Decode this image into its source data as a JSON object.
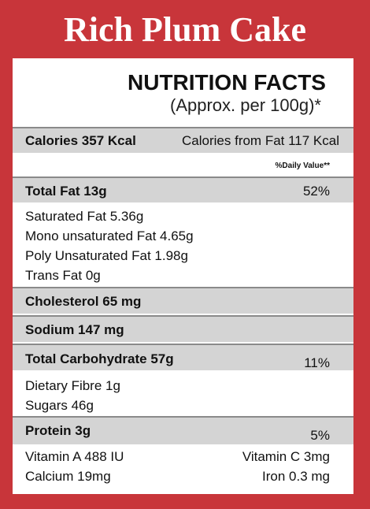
{
  "title": "Rich Plum Cake",
  "panel": {
    "heading": "NUTRITION FACTS",
    "subheading": "(Approx. per 100g)*"
  },
  "calories": {
    "label": "Calories 357 Kcal",
    "from_fat": "Calories from Fat 117 Kcal"
  },
  "daily_value_header": "%Daily Value**",
  "total_fat": {
    "label": "Total Fat 13g",
    "percent": "52%"
  },
  "fat_details": [
    "Saturated Fat 5.36g",
    "Mono unsaturated Fat 4.65g",
    "Poly Unsaturated Fat 1.98g",
    "Trans Fat 0g"
  ],
  "cholesterol": {
    "label": "Cholesterol 65 mg"
  },
  "sodium": {
    "label": "Sodium 147 mg"
  },
  "carbohydrate": {
    "label": "Total Carbohydrate 57g",
    "percent": "11%"
  },
  "carb_details": [
    "Dietary Fibre 1g",
    "Sugars 46g"
  ],
  "protein": {
    "label": "Protein 3g",
    "percent": "5%"
  },
  "vitamins": {
    "left": [
      "Vitamin A 488 IU",
      "Calcium 19mg"
    ],
    "right": [
      "Vitamin C 3mg",
      "Iron 0.3 mg"
    ]
  }
}
